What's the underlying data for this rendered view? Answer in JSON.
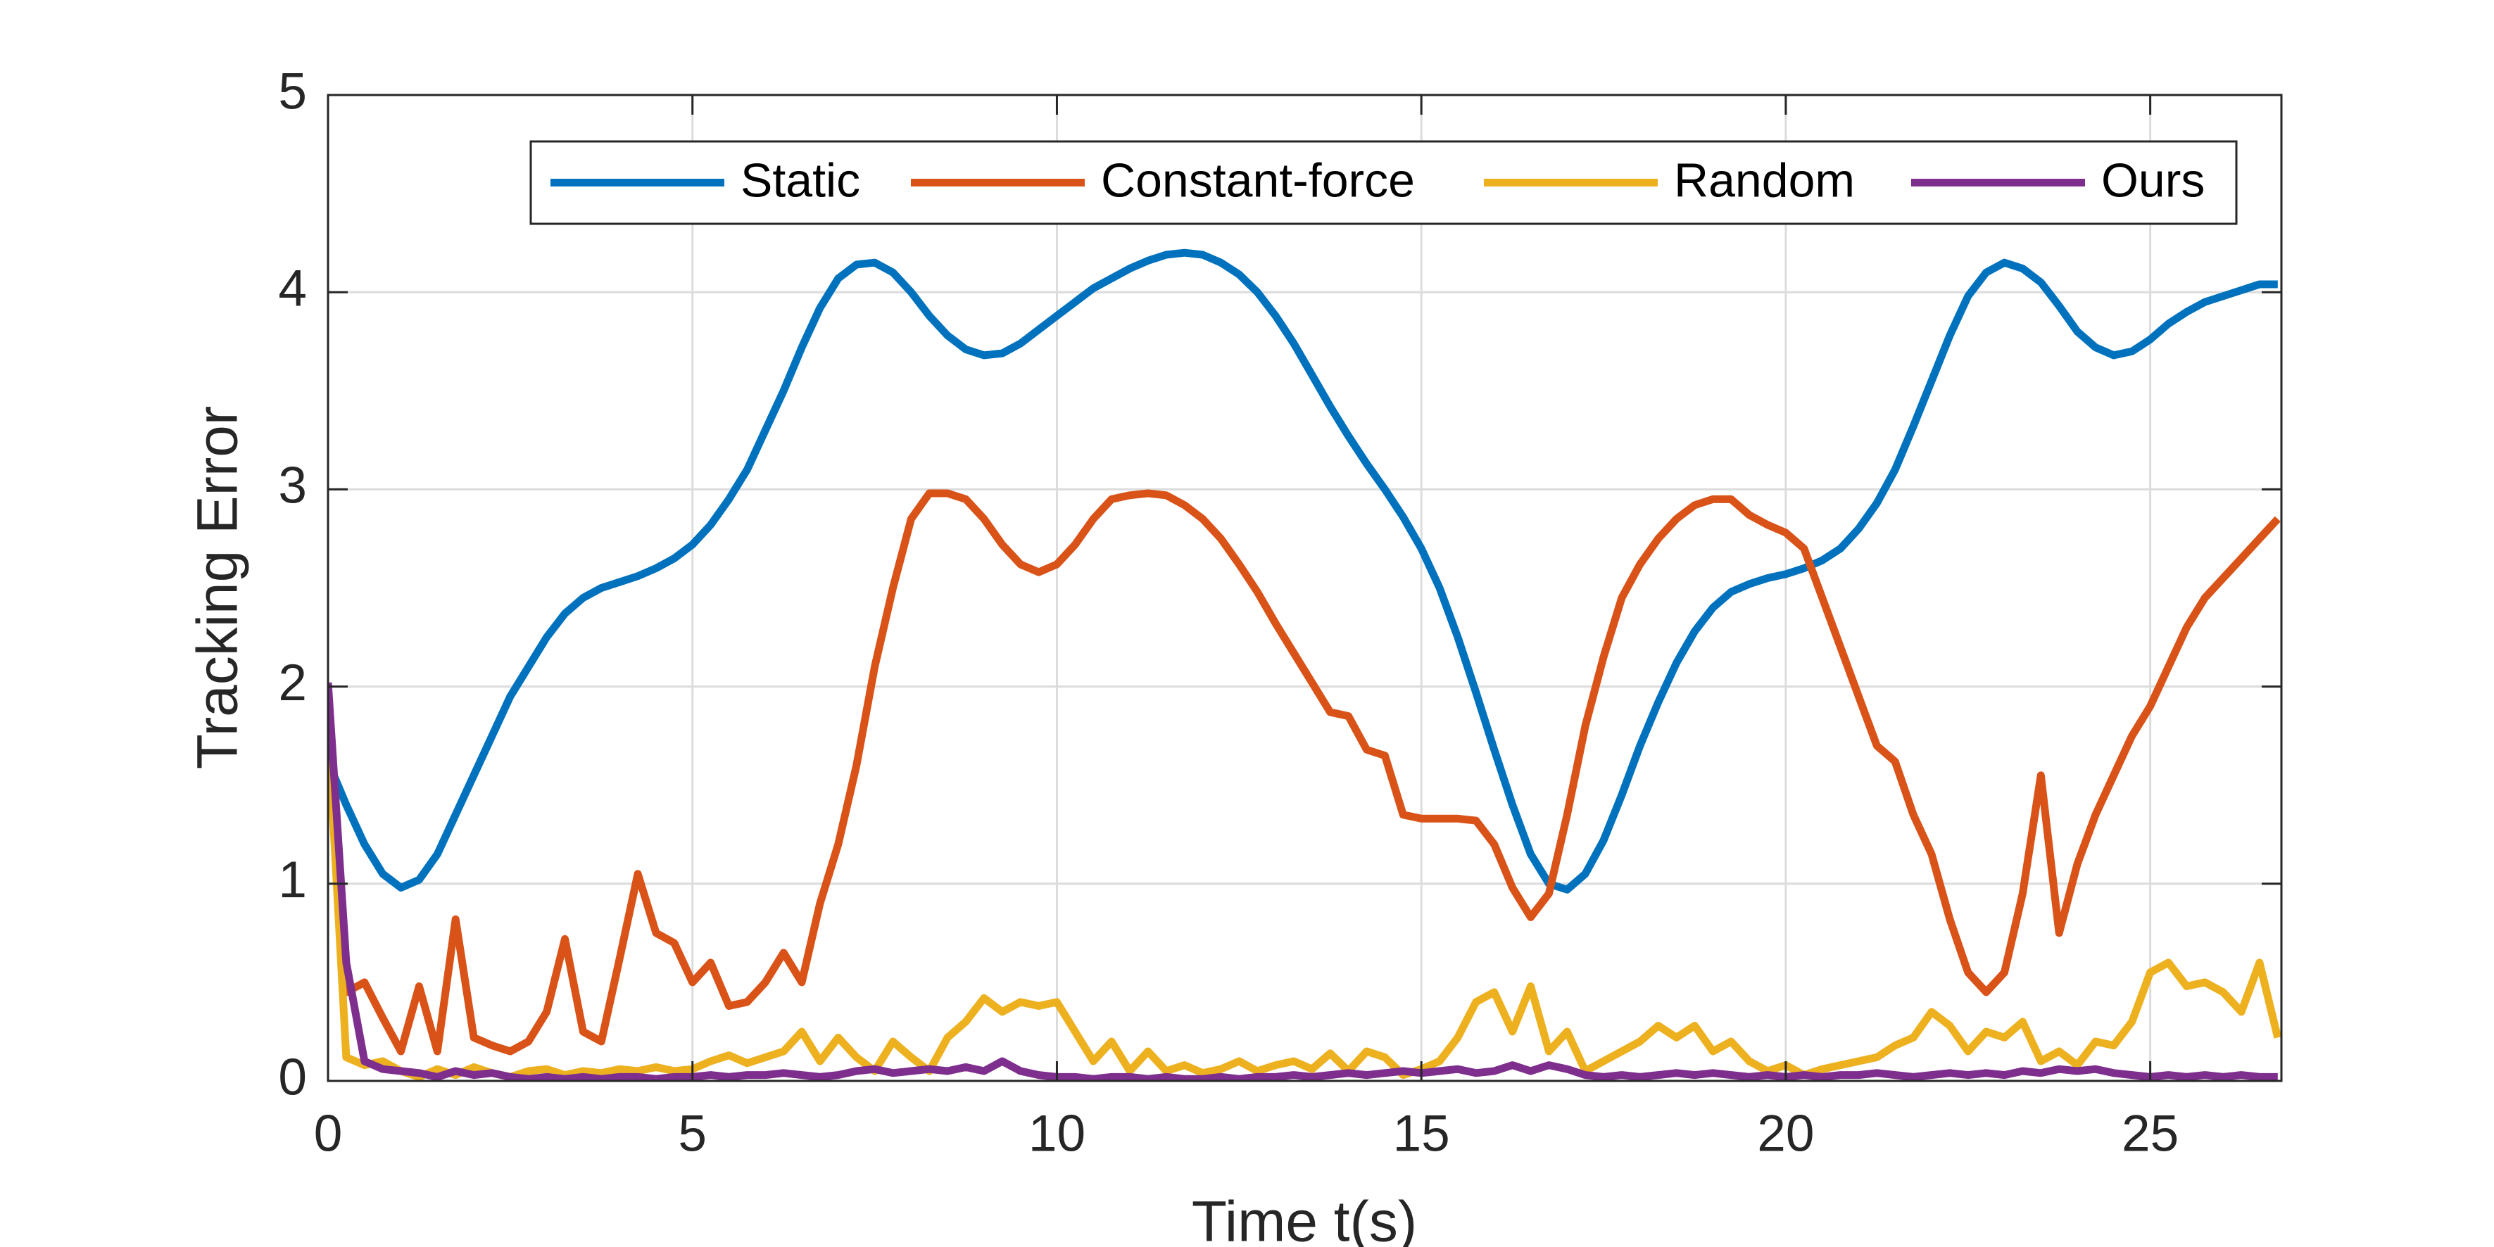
{
  "chart_data": {
    "type": "line",
    "xlabel": "Time t(s)",
    "ylabel": "Tracking Error",
    "xlim": [
      0,
      26.8
    ],
    "ylim": [
      0,
      5
    ],
    "xticks": [
      0,
      5,
      10,
      15,
      20,
      25
    ],
    "yticks": [
      0,
      1,
      2,
      3,
      4,
      5
    ],
    "grid": true,
    "legend": "top-right",
    "x": [
      0,
      0.25,
      0.5,
      0.75,
      1,
      1.25,
      1.5,
      1.75,
      2,
      2.25,
      2.5,
      2.75,
      3,
      3.25,
      3.5,
      3.75,
      4,
      4.25,
      4.5,
      4.75,
      5,
      5.25,
      5.5,
      5.75,
      6,
      6.25,
      6.5,
      6.75,
      7,
      7.25,
      7.5,
      7.75,
      8,
      8.25,
      8.5,
      8.75,
      9,
      9.25,
      9.5,
      9.75,
      10,
      10.25,
      10.5,
      10.75,
      11,
      11.25,
      11.5,
      11.75,
      12,
      12.25,
      12.5,
      12.75,
      13,
      13.25,
      13.5,
      13.75,
      14,
      14.25,
      14.5,
      14.75,
      15,
      15.25,
      15.5,
      15.75,
      16,
      16.25,
      16.5,
      16.75,
      17,
      17.25,
      17.5,
      17.75,
      18,
      18.25,
      18.5,
      18.75,
      19,
      19.25,
      19.5,
      19.75,
      20,
      20.25,
      20.5,
      20.75,
      21,
      21.25,
      21.5,
      21.75,
      22,
      22.25,
      22.5,
      22.75,
      23,
      23.25,
      23.5,
      23.75,
      24,
      24.25,
      24.5,
      24.75,
      25,
      25.25,
      25.5,
      25.75,
      26,
      26.25,
      26.5,
      26.75
    ],
    "series": [
      {
        "name": "Static",
        "color": "#0072BD",
        "values": [
          1.62,
          1.4,
          1.2,
          1.05,
          0.98,
          1.02,
          1.15,
          1.35,
          1.55,
          1.75,
          1.95,
          2.1,
          2.25,
          2.37,
          2.45,
          2.5,
          2.53,
          2.56,
          2.6,
          2.65,
          2.72,
          2.82,
          2.95,
          3.1,
          3.3,
          3.5,
          3.72,
          3.92,
          4.07,
          4.14,
          4.15,
          4.1,
          4.0,
          3.88,
          3.78,
          3.71,
          3.68,
          3.69,
          3.74,
          3.81,
          3.88,
          3.95,
          4.02,
          4.07,
          4.12,
          4.16,
          4.19,
          4.2,
          4.19,
          4.15,
          4.09,
          4.0,
          3.88,
          3.74,
          3.58,
          3.42,
          3.27,
          3.13,
          3.0,
          2.86,
          2.7,
          2.5,
          2.25,
          1.97,
          1.68,
          1.4,
          1.15,
          1.0,
          0.97,
          1.05,
          1.22,
          1.45,
          1.7,
          1.92,
          2.12,
          2.28,
          2.4,
          2.48,
          2.52,
          2.55,
          2.57,
          2.6,
          2.64,
          2.7,
          2.8,
          2.93,
          3.1,
          3.32,
          3.55,
          3.78,
          3.98,
          4.1,
          4.15,
          4.12,
          4.05,
          3.93,
          3.8,
          3.72,
          3.68,
          3.7,
          3.76,
          3.84,
          3.9,
          3.95,
          3.98,
          4.01,
          4.04,
          4.04
        ]
      },
      {
        "name": "Constant-force",
        "color": "#D95319",
        "values": [
          1.8,
          0.45,
          0.5,
          0.32,
          0.15,
          0.48,
          0.15,
          0.82,
          0.22,
          0.18,
          0.15,
          0.2,
          0.35,
          0.72,
          0.25,
          0.2,
          0.62,
          1.05,
          0.75,
          0.7,
          0.5,
          0.6,
          0.38,
          0.4,
          0.5,
          0.65,
          0.5,
          0.9,
          1.2,
          1.6,
          2.1,
          2.5,
          2.85,
          2.98,
          2.98,
          2.95,
          2.85,
          2.72,
          2.62,
          2.58,
          2.62,
          2.72,
          2.85,
          2.95,
          2.97,
          2.98,
          2.97,
          2.92,
          2.85,
          2.75,
          2.62,
          2.48,
          2.32,
          2.17,
          2.02,
          1.87,
          1.85,
          1.68,
          1.65,
          1.35,
          1.33,
          1.33,
          1.33,
          1.32,
          1.2,
          0.98,
          0.83,
          0.95,
          1.35,
          1.8,
          2.15,
          2.45,
          2.62,
          2.75,
          2.85,
          2.92,
          2.95,
          2.95,
          2.87,
          2.82,
          2.78,
          2.7,
          2.45,
          2.2,
          1.95,
          1.7,
          1.62,
          1.35,
          1.15,
          0.82,
          0.55,
          0.45,
          0.55,
          0.95,
          1.55,
          0.75,
          1.1,
          1.35,
          1.55,
          1.75,
          1.9,
          2.1,
          2.3,
          2.45,
          2.55,
          2.65,
          2.75,
          2.85
        ]
      },
      {
        "name": "Random",
        "color": "#EDB120",
        "values": [
          1.8,
          0.12,
          0.08,
          0.1,
          0.05,
          0.02,
          0.06,
          0.03,
          0.07,
          0.04,
          0.02,
          0.05,
          0.06,
          0.03,
          0.05,
          0.04,
          0.06,
          0.05,
          0.07,
          0.05,
          0.06,
          0.1,
          0.13,
          0.09,
          0.12,
          0.15,
          0.25,
          0.1,
          0.22,
          0.12,
          0.05,
          0.2,
          0.12,
          0.05,
          0.22,
          0.3,
          0.42,
          0.35,
          0.4,
          0.38,
          0.4,
          0.25,
          0.1,
          0.2,
          0.05,
          0.15,
          0.05,
          0.08,
          0.04,
          0.06,
          0.1,
          0.05,
          0.08,
          0.1,
          0.06,
          0.14,
          0.05,
          0.15,
          0.12,
          0.03,
          0.06,
          0.1,
          0.22,
          0.4,
          0.45,
          0.25,
          0.48,
          0.15,
          0.25,
          0.05,
          0.1,
          0.15,
          0.2,
          0.28,
          0.22,
          0.28,
          0.15,
          0.2,
          0.1,
          0.05,
          0.08,
          0.03,
          0.06,
          0.08,
          0.1,
          0.12,
          0.18,
          0.22,
          0.35,
          0.28,
          0.15,
          0.25,
          0.22,
          0.3,
          0.1,
          0.15,
          0.08,
          0.2,
          0.18,
          0.3,
          0.55,
          0.6,
          0.48,
          0.5,
          0.45,
          0.35,
          0.6,
          0.22
        ]
      },
      {
        "name": "Ours",
        "color": "#7E2F8E",
        "values": [
          2.02,
          0.6,
          0.1,
          0.06,
          0.05,
          0.04,
          0.02,
          0.05,
          0.03,
          0.04,
          0.02,
          0.01,
          0.02,
          0.01,
          0.02,
          0.01,
          0.02,
          0.02,
          0.01,
          0.02,
          0.02,
          0.03,
          0.02,
          0.03,
          0.03,
          0.04,
          0.03,
          0.02,
          0.03,
          0.05,
          0.06,
          0.04,
          0.05,
          0.06,
          0.05,
          0.07,
          0.05,
          0.1,
          0.05,
          0.03,
          0.02,
          0.02,
          0.01,
          0.02,
          0.02,
          0.01,
          0.02,
          0.01,
          0.01,
          0.02,
          0.01,
          0.02,
          0.02,
          0.03,
          0.02,
          0.03,
          0.04,
          0.03,
          0.04,
          0.05,
          0.04,
          0.05,
          0.06,
          0.04,
          0.05,
          0.08,
          0.05,
          0.08,
          0.06,
          0.03,
          0.02,
          0.03,
          0.02,
          0.03,
          0.04,
          0.03,
          0.04,
          0.03,
          0.02,
          0.03,
          0.02,
          0.03,
          0.02,
          0.03,
          0.03,
          0.04,
          0.03,
          0.02,
          0.03,
          0.04,
          0.03,
          0.04,
          0.03,
          0.05,
          0.04,
          0.06,
          0.05,
          0.06,
          0.04,
          0.03,
          0.02,
          0.03,
          0.02,
          0.03,
          0.02,
          0.03,
          0.02,
          0.02
        ]
      }
    ]
  }
}
